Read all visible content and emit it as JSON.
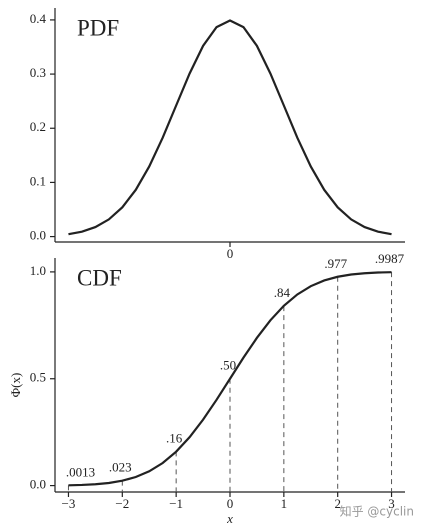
{
  "chart_data": [
    {
      "type": "line",
      "title": "PDF",
      "x": [
        -3,
        -2.75,
        -2.5,
        -2.25,
        -2,
        -1.75,
        -1.5,
        -1.25,
        -1,
        -0.75,
        -0.5,
        -0.25,
        0,
        0.25,
        0.5,
        0.75,
        1,
        1.25,
        1.5,
        1.75,
        2,
        2.25,
        2.5,
        2.75,
        3
      ],
      "values": [
        0.0044,
        0.0091,
        0.0175,
        0.0317,
        0.054,
        0.0863,
        0.1295,
        0.1826,
        0.242,
        0.3011,
        0.3521,
        0.3867,
        0.3989,
        0.3867,
        0.3521,
        0.3011,
        0.242,
        0.1826,
        0.1295,
        0.0863,
        0.054,
        0.0317,
        0.0175,
        0.0091,
        0.0044
      ],
      "color": "#222222",
      "xlim": [
        -3.25,
        3.25
      ],
      "xticks": [
        0
      ],
      "ylim": [
        -0.01,
        0.422
      ],
      "yticks": [
        {
          "value": 0,
          "label": "0.0"
        },
        0.1,
        0.2,
        0.3,
        0.4
      ]
    },
    {
      "type": "line",
      "title": "CDF",
      "xlabel": "x",
      "ylabel": "Φ(x)",
      "x": [
        -3,
        -2.75,
        -2.5,
        -2.25,
        -2,
        -1.75,
        -1.5,
        -1.25,
        -1,
        -0.75,
        -0.5,
        -0.25,
        0,
        0.25,
        0.5,
        0.75,
        1,
        1.25,
        1.5,
        1.75,
        2,
        2.25,
        2.5,
        2.75,
        3
      ],
      "values": [
        0.0013,
        0.003,
        0.0062,
        0.0122,
        0.0228,
        0.0401,
        0.0668,
        0.1056,
        0.1587,
        0.2266,
        0.3085,
        0.4013,
        0.5,
        0.5987,
        0.6915,
        0.7734,
        0.8413,
        0.8944,
        0.9332,
        0.9599,
        0.9772,
        0.9878,
        0.9938,
        0.997,
        0.9987
      ],
      "color": "#222222",
      "xlim": [
        -3.25,
        3.25
      ],
      "xticks": [
        {
          "value": -3,
          "label": "−3"
        },
        {
          "value": -2,
          "label": "−2"
        },
        {
          "value": -1,
          "label": "−1"
        },
        0,
        1,
        2,
        3
      ],
      "ylim": [
        -0.03,
        1.065
      ],
      "yticks": [
        {
          "value": 0,
          "label": "0.0"
        },
        0.5,
        {
          "value": 1,
          "label": "1.0"
        }
      ],
      "annotations": [
        {
          "x": -3,
          "y": 0.0013,
          "label": ".0013"
        },
        {
          "x": -2,
          "y": 0.023,
          "label": ".023"
        },
        {
          "x": -1,
          "y": 0.16,
          "label": ".16"
        },
        {
          "x": 0,
          "y": 0.5,
          "label": ".50"
        },
        {
          "x": 1,
          "y": 0.84,
          "label": ".84"
        },
        {
          "x": 2,
          "y": 0.977,
          "label": ".977"
        },
        {
          "x": 3,
          "y": 0.9987,
          "label": ".9987"
        }
      ]
    }
  ],
  "watermark": "知乎 @cyclin"
}
